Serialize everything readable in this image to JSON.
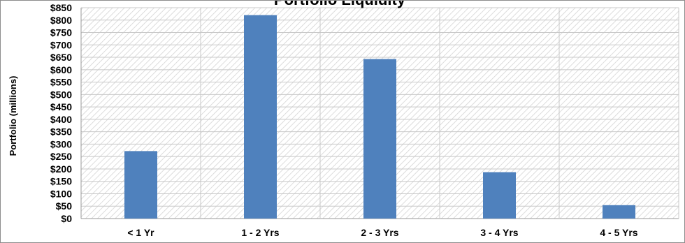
{
  "chart_data": {
    "type": "bar",
    "title": "Portfolio Liquidity",
    "xlabel": "",
    "ylabel": "Portfolio (millions)",
    "categories": [
      "< 1 Yr",
      "1 - 2 Yrs",
      "2 - 3 Yrs",
      "3 - 4 Yrs",
      "4 - 5 Yrs"
    ],
    "values": [
      272,
      820,
      643,
      187,
      54
    ],
    "ylim": [
      0,
      850
    ],
    "ytick_step": 50,
    "ytick_prefix": "$",
    "bar_color": "#4f81bd",
    "gridlines": true,
    "legend": "none"
  }
}
